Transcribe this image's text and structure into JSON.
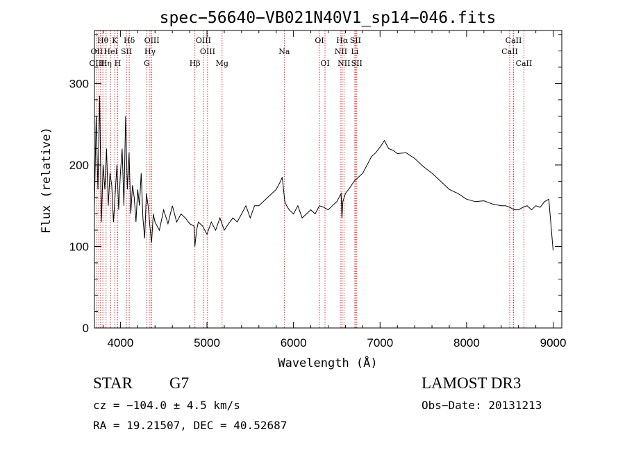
{
  "chart_data": {
    "type": "line",
    "title": "spec−56640−VB021N40V1_sp14−046.fits",
    "xlabel": "Wavelength (Å)",
    "ylabel": "Flux (relative)",
    "xlim": [
      3700,
      9100
    ],
    "ylim": [
      0,
      365
    ],
    "x_ticks": [
      4000,
      5000,
      6000,
      7000,
      8000,
      9000
    ],
    "y_ticks": [
      0,
      100,
      200,
      300
    ],
    "series": [
      {
        "name": "flux",
        "x": [
          3700,
          3720,
          3740,
          3760,
          3780,
          3800,
          3820,
          3840,
          3860,
          3880,
          3900,
          3920,
          3940,
          3960,
          3980,
          4000,
          4020,
          4040,
          4060,
          4080,
          4100,
          4120,
          4140,
          4160,
          4180,
          4200,
          4220,
          4240,
          4260,
          4280,
          4300,
          4320,
          4340,
          4360,
          4380,
          4400,
          4450,
          4500,
          4550,
          4600,
          4650,
          4700,
          4750,
          4800,
          4850,
          4860,
          4880,
          4900,
          4950,
          5000,
          5050,
          5100,
          5150,
          5200,
          5250,
          5300,
          5350,
          5400,
          5450,
          5500,
          5550,
          5600,
          5650,
          5700,
          5750,
          5800,
          5850,
          5870,
          5890,
          5900,
          5920,
          5950,
          6000,
          6050,
          6100,
          6150,
          6200,
          6250,
          6300,
          6350,
          6400,
          6450,
          6500,
          6550,
          6560,
          6570,
          6600,
          6650,
          6700,
          6750,
          6800,
          6850,
          6900,
          6950,
          7000,
          7020,
          7050,
          7100,
          7150,
          7200,
          7300,
          7400,
          7500,
          7600,
          7700,
          7800,
          7900,
          8000,
          8100,
          8200,
          8300,
          8400,
          8450,
          8500,
          8550,
          8600,
          8650,
          8700,
          8750,
          8800,
          8850,
          8900,
          8950,
          9000
        ],
        "y": [
          150,
          260,
          170,
          285,
          130,
          200,
          170,
          220,
          150,
          190,
          175,
          130,
          165,
          200,
          145,
          190,
          220,
          150,
          260,
          170,
          215,
          140,
          175,
          160,
          130,
          170,
          150,
          190,
          135,
          110,
          165,
          150,
          125,
          105,
          140,
          130,
          120,
          145,
          128,
          150,
          130,
          140,
          135,
          128,
          125,
          100,
          120,
          130,
          125,
          115,
          130,
          120,
          135,
          120,
          128,
          135,
          130,
          140,
          150,
          135,
          150,
          150,
          155,
          160,
          165,
          170,
          180,
          185,
          165,
          155,
          150,
          145,
          140,
          150,
          135,
          140,
          145,
          140,
          150,
          148,
          145,
          150,
          155,
          165,
          135,
          155,
          165,
          172,
          180,
          185,
          190,
          200,
          210,
          215,
          222,
          225,
          230,
          220,
          218,
          214,
          215,
          208,
          198,
          190,
          180,
          170,
          165,
          158,
          155,
          156,
          152,
          150,
          150,
          148,
          145,
          145,
          148,
          150,
          145,
          150,
          148,
          155,
          158,
          95
        ]
      }
    ],
    "line_labels": [
      {
        "text": "Hθ",
        "row": 1,
        "x": 3797
      },
      {
        "text": "K",
        "row": 1,
        "x": 3934
      },
      {
        "text": "Hδ",
        "row": 1,
        "x": 4102
      },
      {
        "text": "OIII",
        "row": 1,
        "x": 4363
      },
      {
        "text": "OIII",
        "row": 1,
        "x": 4959
      },
      {
        "text": "OI",
        "row": 1,
        "x": 6300
      },
      {
        "text": "Hα",
        "row": 1,
        "x": 6563
      },
      {
        "text": "SII",
        "row": 1,
        "x": 6716
      },
      {
        "text": "CaII",
        "row": 1,
        "x": 8542
      },
      {
        "text": "OII",
        "row": 2,
        "x": 3727
      },
      {
        "text": "HeI",
        "row": 2,
        "x": 3889
      },
      {
        "text": "SII",
        "row": 2,
        "x": 4070
      },
      {
        "text": "Hγ",
        "row": 2,
        "x": 4341
      },
      {
        "text": "OIII",
        "row": 2,
        "x": 5007
      },
      {
        "text": "Na",
        "row": 2,
        "x": 5893
      },
      {
        "text": "NII",
        "row": 2,
        "x": 6548
      },
      {
        "text": "Li",
        "row": 2,
        "x": 6708
      },
      {
        "text": "CaII",
        "row": 2,
        "x": 8498
      },
      {
        "text": "OIII",
        "row": 3,
        "x": 3727
      },
      {
        "text": "Hη",
        "row": 3,
        "x": 3835
      },
      {
        "text": "H",
        "row": 3,
        "x": 3968
      },
      {
        "text": "G",
        "row": 3,
        "x": 4305
      },
      {
        "text": "Hβ",
        "row": 3,
        "x": 4861
      },
      {
        "text": "Mg",
        "row": 3,
        "x": 5175
      },
      {
        "text": "OI",
        "row": 3,
        "x": 6364
      },
      {
        "text": "NII",
        "row": 3,
        "x": 6583
      },
      {
        "text": "SII",
        "row": 3,
        "x": 6731
      },
      {
        "text": "CaII",
        "row": 3,
        "x": 8662
      }
    ],
    "line_positions": [
      3727,
      3750,
      3771,
      3797,
      3835,
      3889,
      3934,
      3968,
      4070,
      4102,
      4305,
      4341,
      4363,
      4861,
      4959,
      5007,
      5175,
      5893,
      6300,
      6364,
      6548,
      6563,
      6583,
      6708,
      6716,
      6731,
      8498,
      8542,
      8662
    ]
  },
  "info": {
    "object_class": "STAR",
    "subclass": "G7",
    "survey": "LAMOST DR3",
    "cz": "cz = −104.0 ± 4.5 km/s",
    "obs_date": "Obs−Date: 20131213",
    "coords": "RA =  19.21507, DEC =  40.52687"
  },
  "colors": {
    "spectrum": "#000000",
    "line_marker": "#cc0000",
    "axis": "#000000"
  }
}
